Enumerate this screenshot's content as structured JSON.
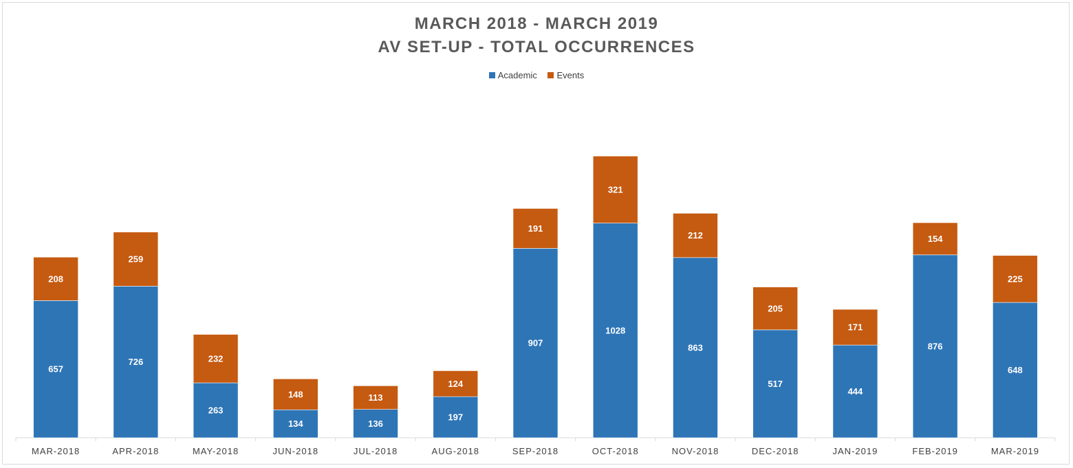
{
  "chart_data": {
    "type": "bar",
    "stacked": true,
    "title": "MARCH 2018 - MARCH 2019",
    "subtitle": "AV SET-UP - TOTAL OCCURRENCES",
    "xlabel": "",
    "ylabel": "",
    "grid": false,
    "legend_position": "top",
    "ylim": [
      0,
      1400
    ],
    "categories": [
      "MAR-2018",
      "APR-2018",
      "MAY-2018",
      "JUN-2018",
      "JUL-2018",
      "AUG-2018",
      "SEP-2018",
      "OCT-2018",
      "NOV-2018",
      "DEC-2018",
      "JAN-2019",
      "FEB-2019",
      "MAR-2019"
    ],
    "series": [
      {
        "name": "Academic",
        "color": "#2e75b6",
        "values": [
          657,
          726,
          263,
          134,
          136,
          197,
          907,
          1028,
          863,
          517,
          444,
          876,
          648
        ]
      },
      {
        "name": "Events",
        "color": "#c55a11",
        "values": [
          208,
          259,
          232,
          148,
          113,
          124,
          191,
          321,
          212,
          205,
          171,
          154,
          225
        ]
      }
    ]
  }
}
